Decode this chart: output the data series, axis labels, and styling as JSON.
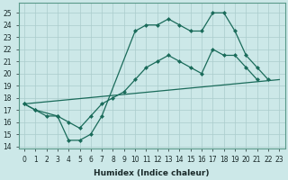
{
  "xlabel": "Humidex (Indice chaleur)",
  "bg_color": "#cce8e8",
  "grid_color": "#aacccc",
  "line_color": "#1a6b5a",
  "xlim": [
    -0.5,
    23.5
  ],
  "ylim": [
    13.8,
    25.8
  ],
  "yticks": [
    14,
    15,
    16,
    17,
    18,
    19,
    20,
    21,
    22,
    23,
    24,
    25
  ],
  "xticks": [
    0,
    1,
    2,
    3,
    4,
    5,
    6,
    7,
    8,
    9,
    10,
    11,
    12,
    13,
    14,
    15,
    16,
    17,
    18,
    19,
    20,
    21,
    22,
    23
  ],
  "line1_x": [
    0,
    23
  ],
  "line1_y": [
    17.5,
    19.5
  ],
  "line2_x": [
    0,
    1,
    3,
    4,
    5,
    6,
    7,
    10,
    11,
    12,
    13,
    14,
    15,
    16,
    17,
    18,
    19,
    20,
    21,
    22
  ],
  "line2_y": [
    17.5,
    17.0,
    16.5,
    14.5,
    14.5,
    15.0,
    16.5,
    23.5,
    24.0,
    24.0,
    24.5,
    24.0,
    23.5,
    23.5,
    25.0,
    25.0,
    23.5,
    21.5,
    20.5,
    19.5
  ],
  "line3_x": [
    0,
    1,
    2,
    3,
    4,
    5,
    6,
    7,
    8,
    9,
    10,
    11,
    12,
    13,
    14,
    15,
    16,
    17,
    18,
    19,
    20,
    21
  ],
  "line3_y": [
    17.5,
    17.0,
    16.5,
    16.5,
    16.0,
    15.5,
    16.5,
    17.5,
    18.0,
    18.5,
    19.5,
    20.5,
    21.0,
    21.5,
    21.0,
    20.5,
    20.0,
    22.0,
    21.5,
    21.5,
    20.5,
    19.5
  ]
}
